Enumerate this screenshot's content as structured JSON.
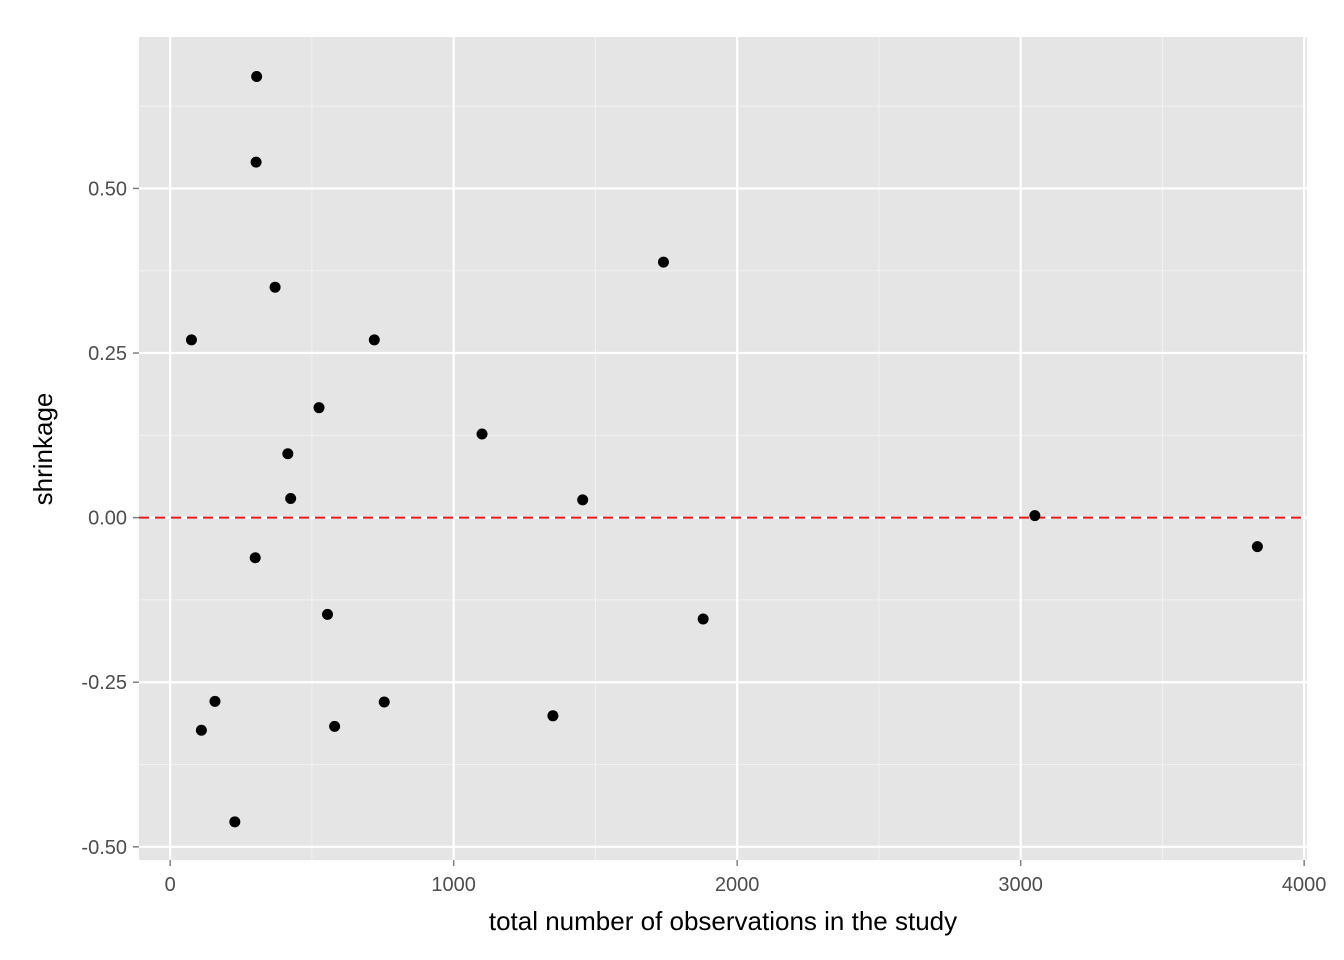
{
  "chart_data": {
    "type": "scatter",
    "title": "",
    "xlabel": "total number of observations in the study",
    "ylabel": "shrinkage",
    "xlim": [
      -110,
      4010
    ],
    "ylim": [
      -0.52,
      0.73
    ],
    "x_ticks": [
      0,
      1000,
      2000,
      3000,
      4000
    ],
    "x_tick_labels": [
      "0",
      "1000",
      "2000",
      "3000",
      "4000"
    ],
    "y_ticks": [
      -0.5,
      -0.25,
      0,
      0.25,
      0.5
    ],
    "y_tick_labels": [
      "-0.50",
      "-0.25",
      "0.00",
      "0.25",
      "0.50"
    ],
    "grid": true,
    "legend": "none",
    "reference_line": {
      "y": 0,
      "color": "#e41a1c",
      "style": "dashed"
    },
    "point_color": "#000000",
    "points": [
      {
        "x": 305,
        "y": 0.67
      },
      {
        "x": 303,
        "y": 0.54
      },
      {
        "x": 370,
        "y": 0.35
      },
      {
        "x": 75,
        "y": 0.27
      },
      {
        "x": 720,
        "y": 0.27
      },
      {
        "x": 525,
        "y": 0.167
      },
      {
        "x": 1100,
        "y": 0.127
      },
      {
        "x": 415,
        "y": 0.097
      },
      {
        "x": 425,
        "y": 0.029
      },
      {
        "x": 1455,
        "y": 0.027
      },
      {
        "x": 1740,
        "y": 0.388
      },
      {
        "x": 300,
        "y": -0.061
      },
      {
        "x": 555,
        "y": -0.147
      },
      {
        "x": 1880,
        "y": -0.154
      },
      {
        "x": 158,
        "y": -0.279
      },
      {
        "x": 110,
        "y": -0.323
      },
      {
        "x": 755,
        "y": -0.28
      },
      {
        "x": 580,
        "y": -0.317
      },
      {
        "x": 1350,
        "y": -0.301
      },
      {
        "x": 228,
        "y": -0.462
      },
      {
        "x": 3050,
        "y": 0.003
      },
      {
        "x": 3835,
        "y": -0.044
      }
    ]
  }
}
